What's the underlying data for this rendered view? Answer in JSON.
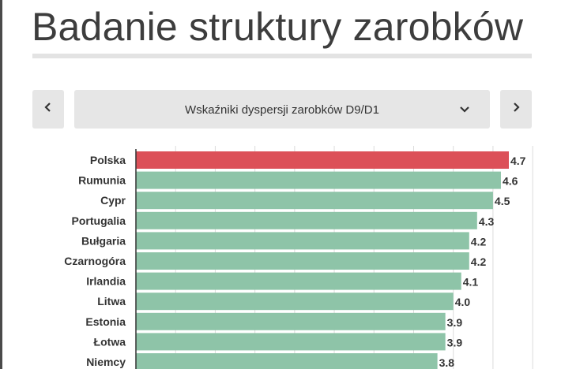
{
  "page": {
    "title": "Badanie struktury zarobków"
  },
  "selector": {
    "selected": "Wskaźniki dyspersji zarobków D9/D1"
  },
  "icons": {
    "prev": "chevron-left-icon",
    "next": "chevron-right-icon",
    "dropdown": "chevron-down-icon"
  },
  "colors": {
    "highlight": "#dc5058",
    "bar": "#8ec4a8",
    "background": "#e6e6e6"
  },
  "chart_data": {
    "type": "bar",
    "orientation": "horizontal",
    "categories": [
      "Polska",
      "Rumunia",
      "Cypr",
      "Portugalia",
      "Bułgaria",
      "Czarnogóra",
      "Irlandia",
      "Litwa",
      "Estonia",
      "Łotwa",
      "Niemcy"
    ],
    "values": [
      4.7,
      4.6,
      4.5,
      4.3,
      4.2,
      4.2,
      4.1,
      4.0,
      3.9,
      3.9,
      3.8
    ],
    "value_labels": [
      "4.7",
      "4.6",
      "4.5",
      "4.3",
      "4.2",
      "4.2",
      "4.1",
      "4.0",
      "3.9",
      "3.9",
      "3.8"
    ],
    "highlight_category": "Polska",
    "xlim": [
      0,
      5
    ],
    "grid": true,
    "title": "",
    "xlabel": "",
    "ylabel": ""
  }
}
